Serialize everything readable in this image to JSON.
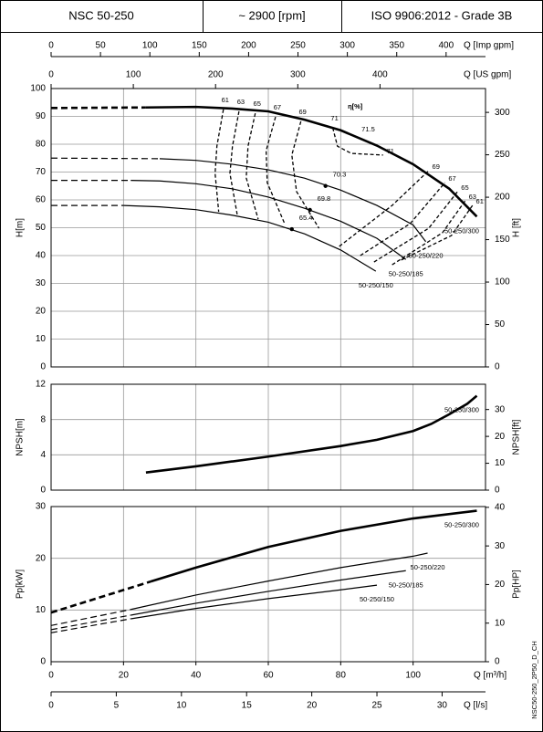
{
  "header": [
    "NSC 50-250",
    "~ 2900 [rpm]",
    "ISO 9906:2012 - Grade 3B"
  ],
  "footer_code": "NSC50-250_2P50_D_CH",
  "chart_data": [
    {
      "type": "line",
      "ylabel": "H[m]",
      "y2label": "H [ft]",
      "xlim": [
        0,
        120
      ],
      "xticks": [
        0,
        20,
        40,
        60,
        80,
        100
      ],
      "ylim": [
        0,
        100
      ],
      "yticks": [
        0,
        10,
        20,
        30,
        40,
        50,
        60,
        70,
        80,
        90,
        100
      ],
      "y2lim": [
        0,
        328.1
      ],
      "y2ticks": [
        0,
        50,
        100,
        150,
        200,
        250,
        300
      ],
      "grid": true,
      "top_axes": [
        {
          "label": "Q [Imp gpm]",
          "xlim": [
            0,
            439.9
          ],
          "xticks": [
            0,
            50,
            100,
            150,
            200,
            250,
            300,
            350,
            400
          ]
        },
        {
          "label": "Q [US gpm]",
          "xlim": [
            0,
            528.3
          ],
          "xticks": [
            0,
            100,
            200,
            300,
            400
          ]
        }
      ],
      "series": [
        {
          "name": "50-250/300",
          "color": "#000",
          "line_width": 2.6,
          "dashed_to": 26,
          "x": [
            0,
            26,
            40,
            50,
            60,
            70,
            80,
            90,
            100,
            110,
            117.6
          ],
          "values": [
            93,
            93.2,
            93.4,
            92.8,
            91.8,
            88.8,
            85,
            79.5,
            72.8,
            64,
            54
          ]
        },
        {
          "name": "50-250/220",
          "color": "#000",
          "line_width": 1.2,
          "dashed_to": 30,
          "x": [
            0,
            30,
            40,
            50,
            60,
            70,
            80,
            90,
            100,
            103.5
          ],
          "values": [
            75,
            74.8,
            74.2,
            72.8,
            70.8,
            67.8,
            63.5,
            58,
            51,
            45
          ],
          "bep": {
            "x": 75.8,
            "y": 65,
            "label": 70.3
          }
        },
        {
          "name": "50-250/185",
          "color": "#000",
          "line_width": 1.2,
          "dashed_to": 22,
          "x": [
            0,
            22,
            30,
            40,
            50,
            60,
            70,
            80,
            90,
            98
          ],
          "values": [
            67,
            67,
            66.8,
            65.8,
            64,
            61,
            57,
            52.3,
            46.2,
            38.6
          ],
          "bep": {
            "x": 71.5,
            "y": 56.4,
            "label": 69.8
          }
        },
        {
          "name": "50-250/150",
          "color": "#000",
          "line_width": 1.2,
          "dashed_to": 20,
          "x": [
            0,
            20,
            30,
            40,
            50,
            60,
            70,
            80,
            89.7
          ],
          "values": [
            58,
            58,
            57.5,
            56.5,
            54.5,
            52,
            47.8,
            42,
            34.4
          ],
          "bep": {
            "x": 66.5,
            "y": 49.5,
            "label": 65.4
          }
        }
      ],
      "efficiency_label": "η[%]",
      "efficiency_peak_label": 71.5,
      "efficiency_curves": [
        {
          "label": 61,
          "x": [
            47.6,
            45.8,
            45.3,
            46.3,
            null,
            96.7,
            110.6,
            116.4
          ],
          "values": [
            92.5,
            79.3,
            69.5,
            55.7,
            null,
            38.4,
            47.2,
            58
          ]
        },
        {
          "label": 63,
          "x": [
            51.9,
            50.1,
            49.4,
            51.4,
            null,
            94.2,
            108.1,
            114.4
          ],
          "values": [
            91.8,
            79.3,
            69.5,
            54.8,
            null,
            36.7,
            48.2,
            59.7
          ]
        },
        {
          "label": 65,
          "x": [
            56.4,
            54.4,
            53.9,
            57.2,
            null,
            89.2,
            104.3,
            112.3
          ],
          "values": [
            91.1,
            79.3,
            67.9,
            53.1,
            null,
            37.7,
            49.8,
            63
          ]
        },
        {
          "label": 67,
          "x": [
            62,
            59.4,
            59.7,
            64.5,
            null,
            85.4,
            99.2,
            108.8
          ],
          "values": [
            89.8,
            77.7,
            66.2,
            51.5,
            null,
            40,
            51.5,
            66.2
          ]
        },
        {
          "label": 69,
          "x": [
            69,
            66.5,
            67.8,
            74,
            null,
            79.6,
            94.2,
            104.3
          ],
          "values": [
            88.2,
            76.1,
            63,
            49.8,
            null,
            43.3,
            58,
            70.5
          ]
        },
        {
          "label": 71,
          "x": [
            77.8,
            79.1,
            82.9,
            91.7
          ],
          "values": [
            85.9,
            79.3,
            76.7,
            76.1
          ]
        }
      ]
    },
    {
      "type": "line",
      "ylabel": "NPSH[m]",
      "y2label": "NPSH[ft]",
      "xlim": [
        0,
        120
      ],
      "xticks": [
        0,
        20,
        40,
        60,
        80,
        100
      ],
      "ylim": [
        0,
        12
      ],
      "yticks": [
        0,
        4,
        8,
        12
      ],
      "y2lim": [
        0,
        39.4
      ],
      "y2ticks": [
        0,
        10,
        20,
        30
      ],
      "grid": true,
      "series": [
        {
          "name": "50-250/300",
          "color": "#000",
          "line_width": 2.6,
          "x": [
            26.2,
            40,
            60,
            80,
            90,
            100,
            105,
            110,
            115,
            117.6
          ],
          "values": [
            2,
            2.7,
            3.8,
            5,
            5.7,
            6.7,
            7.5,
            8.6,
            9.8,
            10.7
          ]
        }
      ]
    },
    {
      "type": "line",
      "ylabel": "Pp[kW]",
      "y2label": "Pp[HP]",
      "xlabel": "Q [m³/h]",
      "xlim": [
        0,
        120
      ],
      "xticks": [
        0,
        20,
        40,
        60,
        80,
        100
      ],
      "ylim": [
        0,
        30
      ],
      "yticks": [
        0,
        10,
        20,
        30
      ],
      "y2lim": [
        0,
        40.2
      ],
      "y2ticks": [
        0,
        10,
        20,
        30,
        40
      ],
      "grid": true,
      "bottom_axes": [
        {
          "label": "Q [l/s]",
          "xlim": [
            0,
            33.33
          ],
          "xticks": [
            0,
            5,
            10,
            15,
            20,
            25,
            30
          ]
        }
      ],
      "series": [
        {
          "name": "50-250/300",
          "color": "#000",
          "line_width": 2.6,
          "dashed_to": 27.5,
          "x": [
            0,
            27.5,
            40,
            60,
            80,
            100,
            117.6
          ],
          "values": [
            9.5,
            15.5,
            18.2,
            22.2,
            25.3,
            27.7,
            29.2
          ]
        },
        {
          "name": "50-250/220",
          "color": "#000",
          "line_width": 1.2,
          "dashed_to": 22,
          "x": [
            0,
            22,
            40,
            60,
            80,
            100,
            104
          ],
          "values": [
            7,
            10.1,
            12.9,
            15.6,
            18.2,
            20.4,
            21
          ]
        },
        {
          "name": "50-250/185",
          "color": "#000",
          "line_width": 1.2,
          "dashed_to": 22,
          "x": [
            0,
            22,
            40,
            60,
            80,
            98
          ],
          "values": [
            6.2,
            9,
            11.3,
            13.6,
            15.8,
            17.6
          ]
        },
        {
          "name": "50-250/150",
          "color": "#000",
          "line_width": 1.2,
          "dashed_to": 22,
          "x": [
            0,
            22,
            40,
            60,
            80,
            90
          ],
          "values": [
            5.6,
            8.3,
            10.3,
            12.2,
            13.9,
            14.8
          ]
        }
      ]
    }
  ]
}
